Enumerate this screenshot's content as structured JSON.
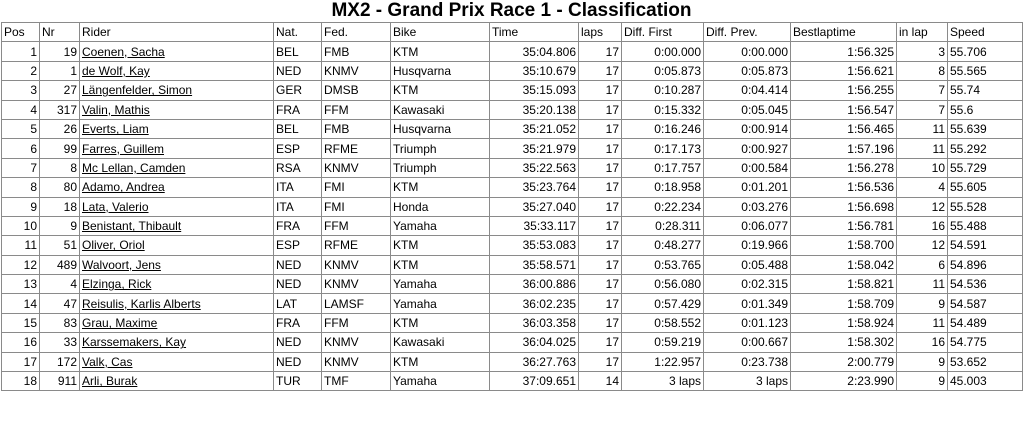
{
  "title": "MX2 - Grand Prix Race 1 - Classification",
  "columns": [
    "Pos",
    "Nr",
    "Rider",
    "Nat.",
    "Fed.",
    "Bike",
    "Time",
    "laps",
    "Diff. First",
    "Diff. Prev.",
    "Bestlaptime",
    "in lap",
    "Speed"
  ],
  "rows": [
    {
      "pos": "1",
      "nr": "19",
      "rider": "Coenen, Sacha",
      "nat": "BEL",
      "fed": "FMB",
      "bike": "KTM",
      "time": "35:04.806",
      "laps": "17",
      "diff_first": "0:00.000",
      "diff_prev": "0:00.000",
      "best": "1:56.325",
      "in_lap": "3",
      "speed": "55.706"
    },
    {
      "pos": "2",
      "nr": "1",
      "rider": "de Wolf, Kay",
      "nat": "NED",
      "fed": "KNMV",
      "bike": "Husqvarna",
      "time": "35:10.679",
      "laps": "17",
      "diff_first": "0:05.873",
      "diff_prev": "0:05.873",
      "best": "1:56.621",
      "in_lap": "8",
      "speed": "55.565"
    },
    {
      "pos": "3",
      "nr": "27",
      "rider": "Längenfelder, Simon",
      "nat": "GER",
      "fed": "DMSB",
      "bike": "KTM",
      "time": "35:15.093",
      "laps": "17",
      "diff_first": "0:10.287",
      "diff_prev": "0:04.414",
      "best": "1:56.255",
      "in_lap": "7",
      "speed": "55.74"
    },
    {
      "pos": "4",
      "nr": "317",
      "rider": "Valin, Mathis",
      "nat": "FRA",
      "fed": "FFM",
      "bike": "Kawasaki",
      "time": "35:20.138",
      "laps": "17",
      "diff_first": "0:15.332",
      "diff_prev": "0:05.045",
      "best": "1:56.547",
      "in_lap": "7",
      "speed": "55.6"
    },
    {
      "pos": "5",
      "nr": "26",
      "rider": "Everts, Liam",
      "nat": "BEL",
      "fed": "FMB",
      "bike": "Husqvarna",
      "time": "35:21.052",
      "laps": "17",
      "diff_first": "0:16.246",
      "diff_prev": "0:00.914",
      "best": "1:56.465",
      "in_lap": "11",
      "speed": "55.639"
    },
    {
      "pos": "6",
      "nr": "99",
      "rider": "Farres, Guillem",
      "nat": "ESP",
      "fed": "RFME",
      "bike": "Triumph",
      "time": "35:21.979",
      "laps": "17",
      "diff_first": "0:17.173",
      "diff_prev": "0:00.927",
      "best": "1:57.196",
      "in_lap": "11",
      "speed": "55.292"
    },
    {
      "pos": "7",
      "nr": "8",
      "rider": "Mc Lellan, Camden",
      "nat": "RSA",
      "fed": "KNMV",
      "bike": "Triumph",
      "time": "35:22.563",
      "laps": "17",
      "diff_first": "0:17.757",
      "diff_prev": "0:00.584",
      "best": "1:56.278",
      "in_lap": "10",
      "speed": "55.729"
    },
    {
      "pos": "8",
      "nr": "80",
      "rider": "Adamo, Andrea",
      "nat": "ITA",
      "fed": "FMI",
      "bike": "KTM",
      "time": "35:23.764",
      "laps": "17",
      "diff_first": "0:18.958",
      "diff_prev": "0:01.201",
      "best": "1:56.536",
      "in_lap": "4",
      "speed": "55.605"
    },
    {
      "pos": "9",
      "nr": "18",
      "rider": "Lata, Valerio",
      "nat": "ITA",
      "fed": "FMI",
      "bike": "Honda",
      "time": "35:27.040",
      "laps": "17",
      "diff_first": "0:22.234",
      "diff_prev": "0:03.276",
      "best": "1:56.698",
      "in_lap": "12",
      "speed": "55.528"
    },
    {
      "pos": "10",
      "nr": "9",
      "rider": "Benistant, Thibault",
      "nat": "FRA",
      "fed": "FFM",
      "bike": "Yamaha",
      "time": "35:33.117",
      "laps": "17",
      "diff_first": "0:28.311",
      "diff_prev": "0:06.077",
      "best": "1:56.781",
      "in_lap": "16",
      "speed": "55.488"
    },
    {
      "pos": "11",
      "nr": "51",
      "rider": "Oliver, Oriol",
      "nat": "ESP",
      "fed": "RFME",
      "bike": "KTM",
      "time": "35:53.083",
      "laps": "17",
      "diff_first": "0:48.277",
      "diff_prev": "0:19.966",
      "best": "1:58.700",
      "in_lap": "12",
      "speed": "54.591"
    },
    {
      "pos": "12",
      "nr": "489",
      "rider": "Walvoort, Jens",
      "nat": "NED",
      "fed": "KNMV",
      "bike": "KTM",
      "time": "35:58.571",
      "laps": "17",
      "diff_first": "0:53.765",
      "diff_prev": "0:05.488",
      "best": "1:58.042",
      "in_lap": "6",
      "speed": "54.896"
    },
    {
      "pos": "13",
      "nr": "4",
      "rider": "Elzinga, Rick",
      "nat": "NED",
      "fed": "KNMV",
      "bike": "Yamaha",
      "time": "36:00.886",
      "laps": "17",
      "diff_first": "0:56.080",
      "diff_prev": "0:02.315",
      "best": "1:58.821",
      "in_lap": "11",
      "speed": "54.536"
    },
    {
      "pos": "14",
      "nr": "47",
      "rider": "Reisulis, Karlis Alberts",
      "nat": "LAT",
      "fed": "LAMSF",
      "bike": "Yamaha",
      "time": "36:02.235",
      "laps": "17",
      "diff_first": "0:57.429",
      "diff_prev": "0:01.349",
      "best": "1:58.709",
      "in_lap": "9",
      "speed": "54.587"
    },
    {
      "pos": "15",
      "nr": "83",
      "rider": "Grau, Maxime",
      "nat": "FRA",
      "fed": "FFM",
      "bike": "KTM",
      "time": "36:03.358",
      "laps": "17",
      "diff_first": "0:58.552",
      "diff_prev": "0:01.123",
      "best": "1:58.924",
      "in_lap": "11",
      "speed": "54.489"
    },
    {
      "pos": "16",
      "nr": "33",
      "rider": "Karssemakers, Kay",
      "nat": "NED",
      "fed": "KNMV",
      "bike": "Kawasaki",
      "time": "36:04.025",
      "laps": "17",
      "diff_first": "0:59.219",
      "diff_prev": "0:00.667",
      "best": "1:58.302",
      "in_lap": "16",
      "speed": "54.775"
    },
    {
      "pos": "17",
      "nr": "172",
      "rider": "Valk, Cas",
      "nat": "NED",
      "fed": "KNMV",
      "bike": "KTM",
      "time": "36:27.763",
      "laps": "17",
      "diff_first": "1:22.957",
      "diff_prev": "0:23.738",
      "best": "2:00.779",
      "in_lap": "9",
      "speed": "53.652"
    },
    {
      "pos": "18",
      "nr": "911",
      "rider": "Arli, Burak",
      "nat": "TUR",
      "fed": "TMF",
      "bike": "Yamaha",
      "time": "37:09.651",
      "laps": "14",
      "diff_first": "3 laps",
      "diff_prev": "3 laps",
      "best": "2:23.990",
      "in_lap": "9",
      "speed": "45.003"
    }
  ]
}
